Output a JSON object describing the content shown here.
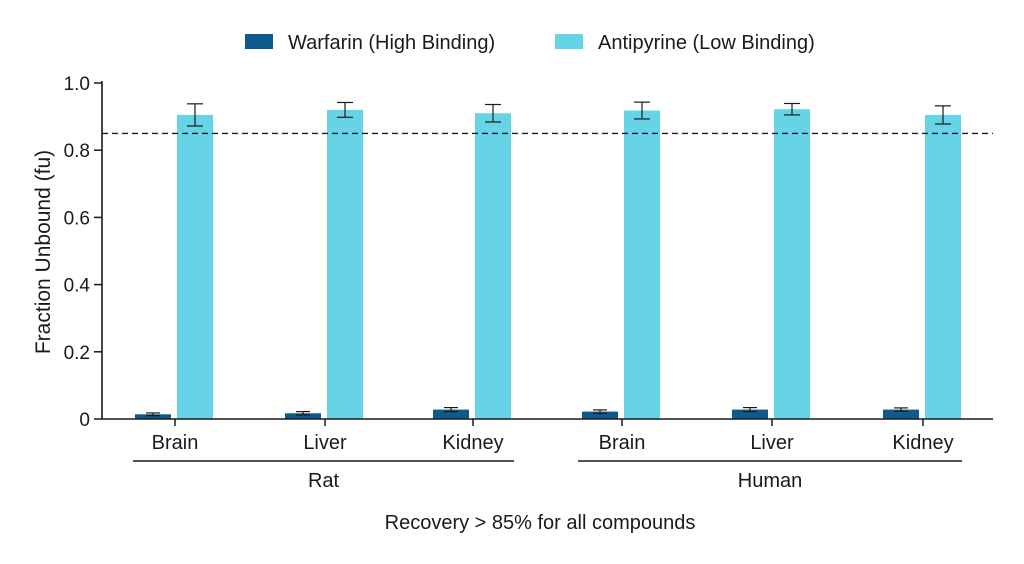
{
  "chart_data": {
    "type": "bar",
    "ylabel": "Fraction Unbound (fu)",
    "xlabel": "",
    "ylim": [
      0,
      1.0
    ],
    "yticks": [
      0,
      0.2,
      0.4,
      0.6,
      0.8,
      1.0
    ],
    "ytick_labels": [
      "0",
      "0.2",
      "0.4",
      "0.6",
      "0.8",
      "1.0"
    ],
    "grid": false,
    "legend_position": "top-center",
    "categories": [
      "Brain",
      "Liver",
      "Kidney",
      "Brain",
      "Liver",
      "Kidney"
    ],
    "groups": [
      {
        "label": "Rat",
        "categories": [
          0,
          1,
          2
        ]
      },
      {
        "label": "Human",
        "categories": [
          3,
          4,
          5
        ]
      }
    ],
    "series": [
      {
        "name": "Warfarin (High Binding)",
        "color": "#0e5a8a",
        "values": [
          0.014,
          0.017,
          0.028,
          0.022,
          0.028,
          0.028
        ],
        "errors": [
          0.004,
          0.005,
          0.006,
          0.005,
          0.006,
          0.005
        ]
      },
      {
        "name": "Antipyrine (Low Binding)",
        "color": "#66d3e6",
        "values": [
          0.905,
          0.92,
          0.91,
          0.918,
          0.922,
          0.905
        ],
        "errors": [
          0.033,
          0.022,
          0.026,
          0.025,
          0.017,
          0.027
        ]
      }
    ],
    "reference_line": {
      "value": 0.85,
      "style": "dashed"
    },
    "footnote": "Recovery > 85% for all compounds"
  }
}
